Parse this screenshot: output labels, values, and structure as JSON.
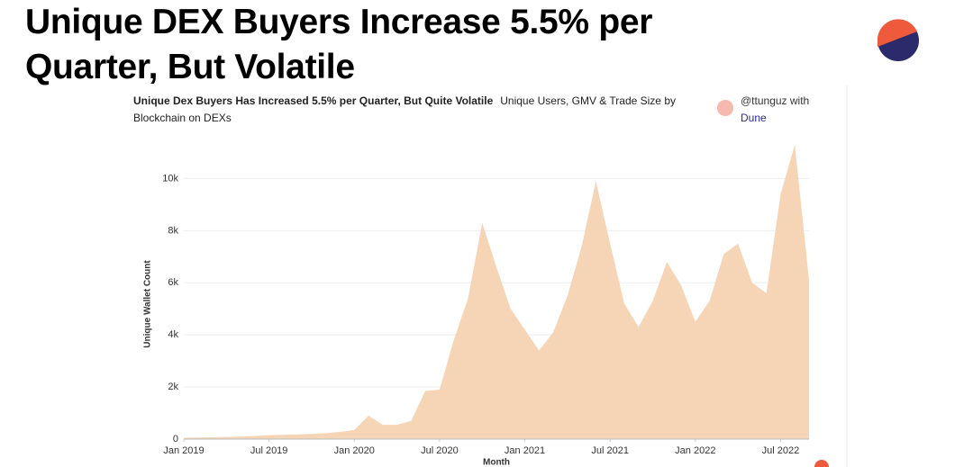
{
  "page_title": "Unique DEX Buyers Increase 5.5% per Quarter, But Volatile",
  "attribution": {
    "handle": "@ttunguz with",
    "source": "Dune"
  },
  "chart_data": {
    "type": "area",
    "title": "Unique Dex Buyers Has Increased 5.5% per Quarter, But Quite Volatile",
    "subtitle": "Unique Users, GMV & Trade Size by Blockchain on DEXs",
    "x_label": "Month",
    "y_label": "Unique Wallet Count",
    "x": [
      "2019-01",
      "2019-02",
      "2019-03",
      "2019-04",
      "2019-05",
      "2019-06",
      "2019-07",
      "2019-08",
      "2019-09",
      "2019-10",
      "2019-11",
      "2019-12",
      "2020-01",
      "2020-02",
      "2020-03",
      "2020-04",
      "2020-05",
      "2020-06",
      "2020-07",
      "2020-08",
      "2020-09",
      "2020-10",
      "2020-11",
      "2020-12",
      "2021-01",
      "2021-02",
      "2021-03",
      "2021-04",
      "2021-05",
      "2021-06",
      "2021-07",
      "2021-08",
      "2021-09",
      "2021-10",
      "2021-11",
      "2021-12",
      "2022-01",
      "2022-02",
      "2022-03",
      "2022-04",
      "2022-05",
      "2022-06",
      "2022-07",
      "2022-08",
      "2022-09"
    ],
    "series": [
      {
        "name": "Unique Wallet Count",
        "color": "#f6d5b6",
        "values": [
          50,
          60,
          70,
          80,
          100,
          120,
          150,
          170,
          180,
          200,
          230,
          280,
          350,
          900,
          550,
          550,
          700,
          1850,
          1900,
          3800,
          5400,
          8300,
          6600,
          5000,
          4200,
          3400,
          4100,
          5500,
          7400,
          9900,
          7500,
          5200,
          4300,
          5300,
          6800,
          5900,
          4500,
          5300,
          7100,
          7500,
          6000,
          5600,
          9400,
          11300,
          6100
        ]
      }
    ],
    "xlim": [
      "2019-01",
      "2022-09"
    ],
    "xticks": [
      {
        "value": "2019-01",
        "label": "Jan 2019"
      },
      {
        "value": "2019-07",
        "label": "Jul 2019"
      },
      {
        "value": "2020-01",
        "label": "Jan 2020"
      },
      {
        "value": "2020-07",
        "label": "Jul 2020"
      },
      {
        "value": "2021-01",
        "label": "Jan 2021"
      },
      {
        "value": "2021-07",
        "label": "Jul 2021"
      },
      {
        "value": "2022-01",
        "label": "Jan 2022"
      },
      {
        "value": "2022-07",
        "label": "Jul 2022"
      }
    ],
    "ylim": [
      0,
      11500
    ],
    "yticks": [
      0,
      {
        "value": 2000,
        "label": "2k"
      },
      {
        "value": 4000,
        "label": "4k"
      },
      {
        "value": 6000,
        "label": "6k"
      },
      {
        "value": 8000,
        "label": "8k"
      },
      {
        "value": 10000,
        "label": "10k"
      }
    ],
    "grid": true
  }
}
